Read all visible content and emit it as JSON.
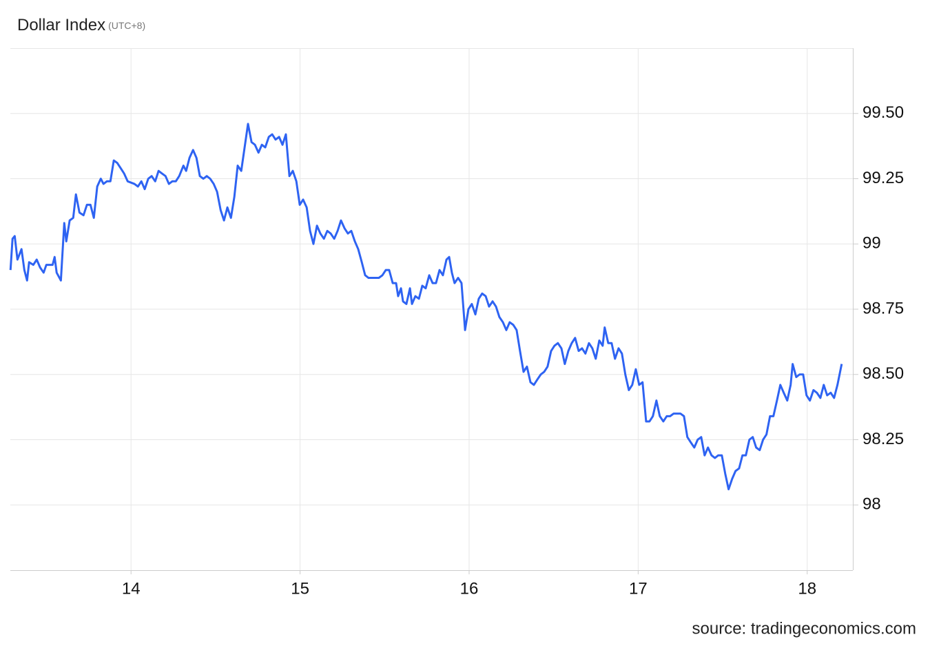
{
  "chart_data": {
    "type": "line",
    "title": "Dollar Index",
    "subtitle": "(UTC+8)",
    "source": "source: tradingeconomics.com",
    "color": "#2e63f2",
    "grid": true,
    "xlim": [
      13.286,
      18.27
    ],
    "xticks": [
      14,
      15,
      16,
      17,
      18
    ],
    "ylim": [
      97.75,
      99.75
    ],
    "yticks": [
      98,
      98.25,
      {
        "value": 98.5,
        "label": "98.50"
      },
      98.75,
      99,
      99.25,
      {
        "value": 99.5,
        "label": "99.50"
      }
    ],
    "x": [
      13.287,
      13.299,
      13.312,
      13.328,
      13.352,
      13.369,
      13.385,
      13.397,
      13.422,
      13.442,
      13.462,
      13.483,
      13.499,
      13.519,
      13.536,
      13.548,
      13.56,
      13.585,
      13.605,
      13.617,
      13.637,
      13.658,
      13.674,
      13.695,
      13.719,
      13.739,
      13.76,
      13.78,
      13.8,
      13.821,
      13.837,
      13.857,
      13.878,
      13.898,
      13.919,
      13.939,
      13.959,
      13.98,
      14.02,
      14.041,
      14.061,
      14.081,
      14.102,
      14.122,
      14.143,
      14.163,
      14.183,
      14.204,
      14.224,
      14.244,
      14.265,
      14.285,
      14.31,
      14.326,
      14.346,
      14.367,
      14.387,
      14.407,
      14.428,
      14.448,
      14.468,
      14.489,
      14.509,
      14.53,
      14.55,
      14.57,
      14.591,
      14.611,
      14.631,
      14.652,
      14.672,
      14.692,
      14.713,
      14.733,
      14.754,
      14.774,
      14.794,
      14.815,
      14.835,
      14.855,
      14.876,
      14.896,
      14.916,
      14.937,
      14.957,
      14.978,
      14.998,
      15.018,
      15.039,
      15.059,
      15.079,
      15.1,
      15.12,
      15.141,
      15.161,
      15.181,
      15.202,
      15.222,
      15.242,
      15.263,
      15.283,
      15.303,
      15.324,
      15.344,
      15.365,
      15.385,
      15.405,
      15.426,
      15.446,
      15.466,
      15.487,
      15.507,
      15.527,
      15.548,
      15.568,
      15.58,
      15.597,
      15.609,
      15.629,
      15.65,
      15.662,
      15.682,
      15.703,
      15.723,
      15.743,
      15.764,
      15.784,
      15.804,
      15.825,
      15.845,
      15.866,
      15.882,
      15.898,
      15.914,
      15.935,
      15.955,
      15.976,
      15.996,
      16.016,
      16.037,
      16.057,
      16.077,
      16.098,
      16.118,
      16.139,
      16.159,
      16.179,
      16.2,
      16.22,
      16.24,
      16.261,
      16.281,
      16.301,
      16.322,
      16.342,
      16.363,
      16.383,
      16.403,
      16.424,
      16.444,
      16.464,
      16.485,
      16.505,
      16.525,
      16.546,
      16.566,
      16.587,
      16.607,
      16.627,
      16.648,
      16.668,
      16.688,
      16.709,
      16.729,
      16.749,
      16.77,
      16.79,
      16.802,
      16.823,
      16.843,
      16.863,
      16.884,
      16.904,
      16.924,
      16.945,
      16.965,
      16.986,
      17.006,
      17.026,
      17.047,
      17.067,
      17.087,
      17.108,
      17.128,
      17.149,
      17.169,
      17.189,
      17.21,
      17.23,
      17.25,
      17.271,
      17.291,
      17.311,
      17.332,
      17.352,
      17.373,
      17.393,
      17.413,
      17.434,
      17.454,
      17.474,
      17.495,
      17.515,
      17.535,
      17.556,
      17.576,
      17.597,
      17.617,
      17.637,
      17.658,
      17.678,
      17.698,
      17.719,
      17.739,
      17.759,
      17.78,
      17.8,
      17.821,
      17.841,
      17.861,
      17.882,
      17.902,
      17.914,
      17.935,
      17.955,
      17.976,
      17.996,
      18.016,
      18.037,
      18.057,
      18.078,
      18.098,
      18.118,
      18.139,
      18.159,
      18.179,
      18.204
    ],
    "values": [
      98.9,
      99.02,
      99.03,
      98.94,
      98.98,
      98.9,
      98.86,
      98.93,
      98.92,
      98.94,
      98.91,
      98.89,
      98.92,
      98.92,
      98.92,
      98.95,
      98.89,
      98.86,
      99.08,
      99.01,
      99.09,
      99.1,
      99.19,
      99.12,
      99.11,
      99.15,
      99.15,
      99.1,
      99.22,
      99.25,
      99.23,
      99.24,
      99.24,
      99.32,
      99.31,
      99.29,
      99.27,
      99.24,
      99.23,
      99.22,
      99.24,
      99.21,
      99.25,
      99.26,
      99.24,
      99.28,
      99.27,
      99.26,
      99.23,
      99.24,
      99.24,
      99.26,
      99.3,
      99.28,
      99.33,
      99.36,
      99.33,
      99.26,
      99.25,
      99.26,
      99.25,
      99.23,
      99.2,
      99.13,
      99.09,
      99.14,
      99.1,
      99.18,
      99.3,
      99.28,
      99.37,
      99.46,
      99.39,
      99.38,
      99.35,
      99.38,
      99.37,
      99.41,
      99.42,
      99.4,
      99.41,
      99.38,
      99.42,
      99.26,
      99.28,
      99.24,
      99.15,
      99.17,
      99.14,
      99.05,
      99.0,
      99.07,
      99.04,
      99.02,
      99.05,
      99.04,
      99.02,
      99.05,
      99.09,
      99.06,
      99.04,
      99.05,
      99.01,
      98.98,
      98.93,
      98.88,
      98.87,
      98.87,
      98.87,
      98.87,
      98.88,
      98.9,
      98.9,
      98.85,
      98.85,
      98.8,
      98.83,
      98.78,
      98.77,
      98.83,
      98.77,
      98.8,
      98.79,
      98.84,
      98.83,
      98.88,
      98.85,
      98.85,
      98.9,
      98.88,
      98.94,
      98.95,
      98.89,
      98.85,
      98.87,
      98.85,
      98.67,
      98.75,
      98.77,
      98.73,
      98.79,
      98.81,
      98.8,
      98.76,
      98.78,
      98.76,
      98.72,
      98.7,
      98.67,
      98.7,
      98.69,
      98.67,
      98.59,
      98.51,
      98.53,
      98.47,
      98.46,
      98.48,
      98.5,
      98.51,
      98.53,
      98.59,
      98.61,
      98.62,
      98.6,
      98.54,
      98.59,
      98.62,
      98.64,
      98.59,
      98.6,
      98.58,
      98.62,
      98.6,
      98.56,
      98.63,
      98.61,
      98.68,
      98.62,
      98.62,
      98.56,
      98.6,
      98.58,
      98.5,
      98.44,
      98.46,
      98.52,
      98.46,
      98.47,
      98.32,
      98.32,
      98.34,
      98.4,
      98.34,
      98.32,
      98.34,
      98.34,
      98.35,
      98.35,
      98.35,
      98.34,
      98.26,
      98.24,
      98.22,
      98.25,
      98.26,
      98.19,
      98.22,
      98.19,
      98.18,
      98.19,
      98.19,
      98.12,
      98.06,
      98.1,
      98.13,
      98.14,
      98.19,
      98.19,
      98.25,
      98.26,
      98.22,
      98.21,
      98.25,
      98.27,
      98.34,
      98.34,
      98.4,
      98.46,
      98.43,
      98.4,
      98.46,
      98.54,
      98.49,
      98.5,
      98.5,
      98.42,
      98.4,
      98.44,
      98.43,
      98.41,
      98.46,
      98.42,
      98.43,
      98.41,
      98.46,
      98.54
    ]
  }
}
